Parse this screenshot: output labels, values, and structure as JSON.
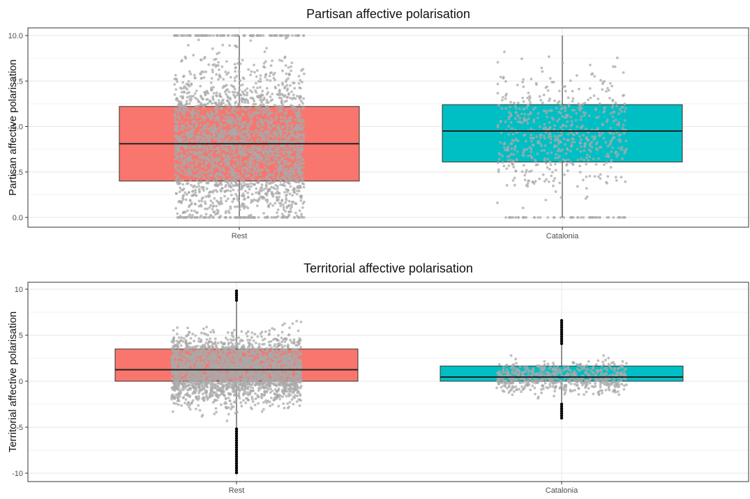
{
  "chart_data": [
    {
      "type": "box",
      "title": "Partisan affective polarisation",
      "ylabel": "Partisan affective polarisation",
      "xlabel": "",
      "ylim": [
        0,
        10
      ],
      "y_ticks": [
        "0.0",
        "2.5",
        "5.0",
        "7.5",
        "10.0"
      ],
      "categories": [
        "Rest",
        "Catalonia"
      ],
      "colors": [
        "#f8766d",
        "#00bfc4"
      ],
      "point_color": "#aaaaaa",
      "grid": true,
      "legend": "none",
      "boxes": [
        {
          "category": "Rest",
          "lower_whisker": 0.0,
          "q1": 2.0,
          "median": 4.05,
          "q3": 6.1,
          "upper_whisker": 10.0
        },
        {
          "category": "Catalonia",
          "lower_whisker": 0.0,
          "q1": 3.05,
          "median": 4.75,
          "q3": 6.2,
          "upper_whisker": 10.0
        }
      ],
      "jitter_points": [
        {
          "category": "Rest",
          "n": 2600,
          "ymin": 0,
          "ymax": 10,
          "clusters_at": [
            0,
            10
          ]
        },
        {
          "category": "Catalonia",
          "n": 650,
          "ymin": 0,
          "ymax": 10,
          "clusters_at": [
            0
          ]
        }
      ]
    },
    {
      "type": "box",
      "title": "Territorial affective polarisation",
      "ylabel": "Territorial affective polarisation",
      "xlabel": "",
      "ylim": [
        -10,
        10
      ],
      "y_ticks": [
        "-10",
        "-5",
        "0",
        "5",
        "10"
      ],
      "categories": [
        "Rest",
        "Catalonia"
      ],
      "colors": [
        "#f8766d",
        "#00bfc4"
      ],
      "point_color": "#aaaaaa",
      "outlier_color": "#000000",
      "grid": true,
      "legend": "none",
      "boxes": [
        {
          "category": "Rest",
          "lower_whisker": -5.2,
          "q1": 0.0,
          "median": 1.25,
          "q3": 3.5,
          "upper_whisker": 8.8
        },
        {
          "category": "Catalonia",
          "lower_whisker": -2.5,
          "q1": 0.0,
          "median": 0.45,
          "q3": 1.65,
          "upper_whisker": 4.1
        }
      ],
      "jitter_points": [
        {
          "category": "Rest",
          "n": 2500,
          "ymin": -10,
          "ymax": 10
        },
        {
          "category": "Catalonia",
          "n": 650,
          "ymin": -4,
          "ymax": 6.8
        }
      ]
    }
  ]
}
